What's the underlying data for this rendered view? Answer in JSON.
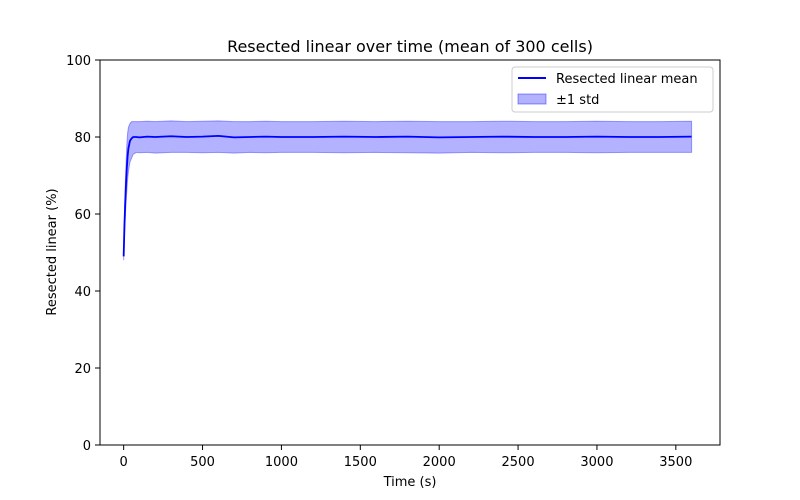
{
  "chart_data": {
    "type": "line",
    "title": "Resected linear over time (mean of 300 cells)",
    "xlabel": "Time (s)",
    "ylabel": "Resected linear (%)",
    "xlim": [
      -150,
      3780
    ],
    "ylim": [
      0,
      100
    ],
    "xticks": [
      0,
      500,
      1000,
      1500,
      2000,
      2500,
      3000,
      3500
    ],
    "yticks": [
      0,
      20,
      40,
      60,
      80,
      100
    ],
    "grid": false,
    "legend_position": "top-right",
    "series": [
      {
        "name": "Resected linear mean",
        "kind": "line",
        "color": "#0000ff",
        "x": [
          0,
          5,
          10,
          15,
          20,
          25,
          30,
          40,
          50,
          60,
          80,
          100,
          150,
          200,
          300,
          400,
          500,
          600,
          700,
          800,
          900,
          1000,
          1200,
          1400,
          1600,
          1800,
          2000,
          2200,
          2400,
          2600,
          2800,
          3000,
          3200,
          3400,
          3600
        ],
        "values": [
          49,
          57,
          63,
          68,
          72,
          75,
          77,
          79,
          79.6,
          80,
          80,
          79.9,
          80.1,
          80,
          80.2,
          80,
          80.1,
          80.3,
          79.9,
          80,
          80.1,
          80,
          80,
          80.1,
          80,
          80.1,
          79.9,
          80,
          80.1,
          80,
          80,
          80.1,
          80,
          80,
          80.1
        ]
      },
      {
        "name": "±1 std",
        "kind": "band",
        "color": "#0000ff",
        "x": [
          0,
          5,
          10,
          15,
          20,
          25,
          30,
          40,
          50,
          60,
          80,
          100,
          150,
          200,
          300,
          400,
          500,
          600,
          700,
          800,
          900,
          1000,
          1200,
          1400,
          1600,
          1800,
          2000,
          2200,
          2400,
          2600,
          2800,
          3000,
          3200,
          3400,
          3600
        ],
        "lower": [
          48,
          55,
          59,
          63,
          66,
          69,
          71,
          73.5,
          74.5,
          75.5,
          76,
          75.9,
          76,
          75.8,
          76,
          76,
          75.9,
          76,
          75.8,
          76,
          75.9,
          76,
          76,
          75.9,
          76,
          75.9,
          75.8,
          76,
          75.9,
          76,
          76,
          75.9,
          76,
          76,
          76
        ],
        "upper": [
          50,
          59,
          67,
          73,
          78,
          81,
          82.5,
          83.5,
          84,
          84,
          84,
          84,
          84.1,
          84,
          84.2,
          84,
          84.1,
          84.2,
          84,
          84,
          84.1,
          84,
          84,
          84.1,
          84,
          84.1,
          84,
          84,
          84.1,
          84,
          84,
          84.1,
          84,
          84,
          84.1
        ]
      }
    ]
  }
}
